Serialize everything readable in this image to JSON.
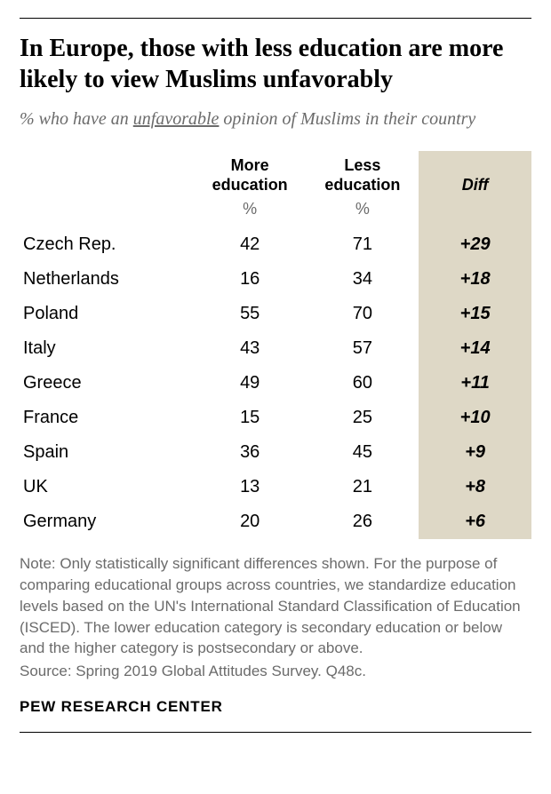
{
  "title": "In Europe, those with less education are more likely to view Muslims unfavorably",
  "subtitle_prefix": "% who have an ",
  "subtitle_underlined": "unfavorable",
  "subtitle_suffix": " opinion of Muslims in their country",
  "columns": {
    "more": "More education",
    "less": "Less education",
    "diff": "Diff",
    "unit": "%"
  },
  "rows": [
    {
      "country": "Czech Rep.",
      "more": "42",
      "less": "71",
      "diff": "+29"
    },
    {
      "country": "Netherlands",
      "more": "16",
      "less": "34",
      "diff": "+18"
    },
    {
      "country": "Poland",
      "more": "55",
      "less": "70",
      "diff": "+15"
    },
    {
      "country": "Italy",
      "more": "43",
      "less": "57",
      "diff": "+14"
    },
    {
      "country": "Greece",
      "more": "49",
      "less": "60",
      "diff": "+11"
    },
    {
      "country": "France",
      "more": "15",
      "less": "25",
      "diff": "+10"
    },
    {
      "country": "Spain",
      "more": "36",
      "less": "45",
      "diff": "+9"
    },
    {
      "country": "UK",
      "more": "13",
      "less": "21",
      "diff": "+8"
    },
    {
      "country": "Germany",
      "more": "20",
      "less": "26",
      "diff": "+6"
    }
  ],
  "note": "Note: Only statistically significant differences shown. For the purpose of comparing educational groups across countries, we standardize education levels based on the UN's International Standard Classification of Education (ISCED). The lower education category is secondary education or below and the higher category is postsecondary or above.",
  "source": "Source: Spring 2019 Global Attitudes Survey. Q48c.",
  "footer": "PEW RESEARCH CENTER",
  "style": {
    "diff_bg": "#ded8c6",
    "text_muted": "#6b6b6b",
    "text_color": "#000000",
    "page_bg": "#ffffff"
  }
}
